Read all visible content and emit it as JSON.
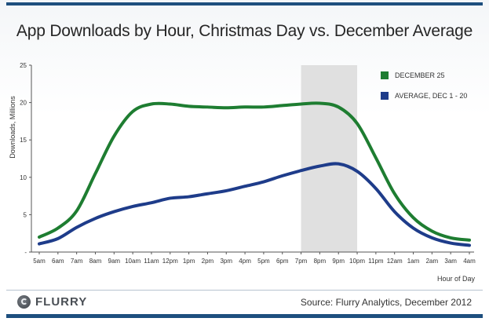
{
  "chart_data": {
    "type": "line",
    "title": "App Downloads by Hour, Christmas Day vs. December Average",
    "xlabel": "Hour of Day",
    "ylabel": "Downloads, Millions",
    "categories": [
      "5am",
      "6am",
      "7am",
      "8am",
      "9am",
      "10am",
      "11am",
      "12pm",
      "1pm",
      "2pm",
      "3pm",
      "4pm",
      "5pm",
      "6pm",
      "7pm",
      "8pm",
      "9pm",
      "10pm",
      "11pm",
      "12am",
      "1am",
      "2am",
      "3am",
      "4am"
    ],
    "ylim": [
      0,
      25
    ],
    "yticks": [
      "-",
      "5",
      "10",
      "15",
      "20",
      "25"
    ],
    "grid": false,
    "legend_position": "top-right",
    "highlight_range": [
      "7pm",
      "10pm"
    ],
    "highlight_color": "#e0e0e0",
    "series": [
      {
        "name": "DECEMBER 25",
        "color": "#1e7d31",
        "values": [
          2.0,
          3.2,
          5.5,
          10.5,
          15.5,
          18.8,
          19.8,
          19.8,
          19.5,
          19.4,
          19.3,
          19.4,
          19.4,
          19.6,
          19.8,
          19.9,
          19.4,
          17.2,
          12.6,
          7.8,
          4.6,
          2.8,
          1.9,
          1.6
        ]
      },
      {
        "name": "AVERAGE, DEC 1 - 20",
        "color": "#1e3c8a",
        "values": [
          1.1,
          1.8,
          3.3,
          4.5,
          5.4,
          6.1,
          6.6,
          7.2,
          7.4,
          7.8,
          8.2,
          8.8,
          9.4,
          10.2,
          10.9,
          11.5,
          11.8,
          10.8,
          8.5,
          5.4,
          3.2,
          1.9,
          1.2,
          0.9
        ]
      }
    ]
  },
  "footer": {
    "brand": "FLURRY",
    "brand_icon": "flurry-logo-icon",
    "source": "Source: Flurry Analytics, December 2012"
  },
  "colors": {
    "frame_bar": "#1e4f7e",
    "axis": "#555555"
  }
}
